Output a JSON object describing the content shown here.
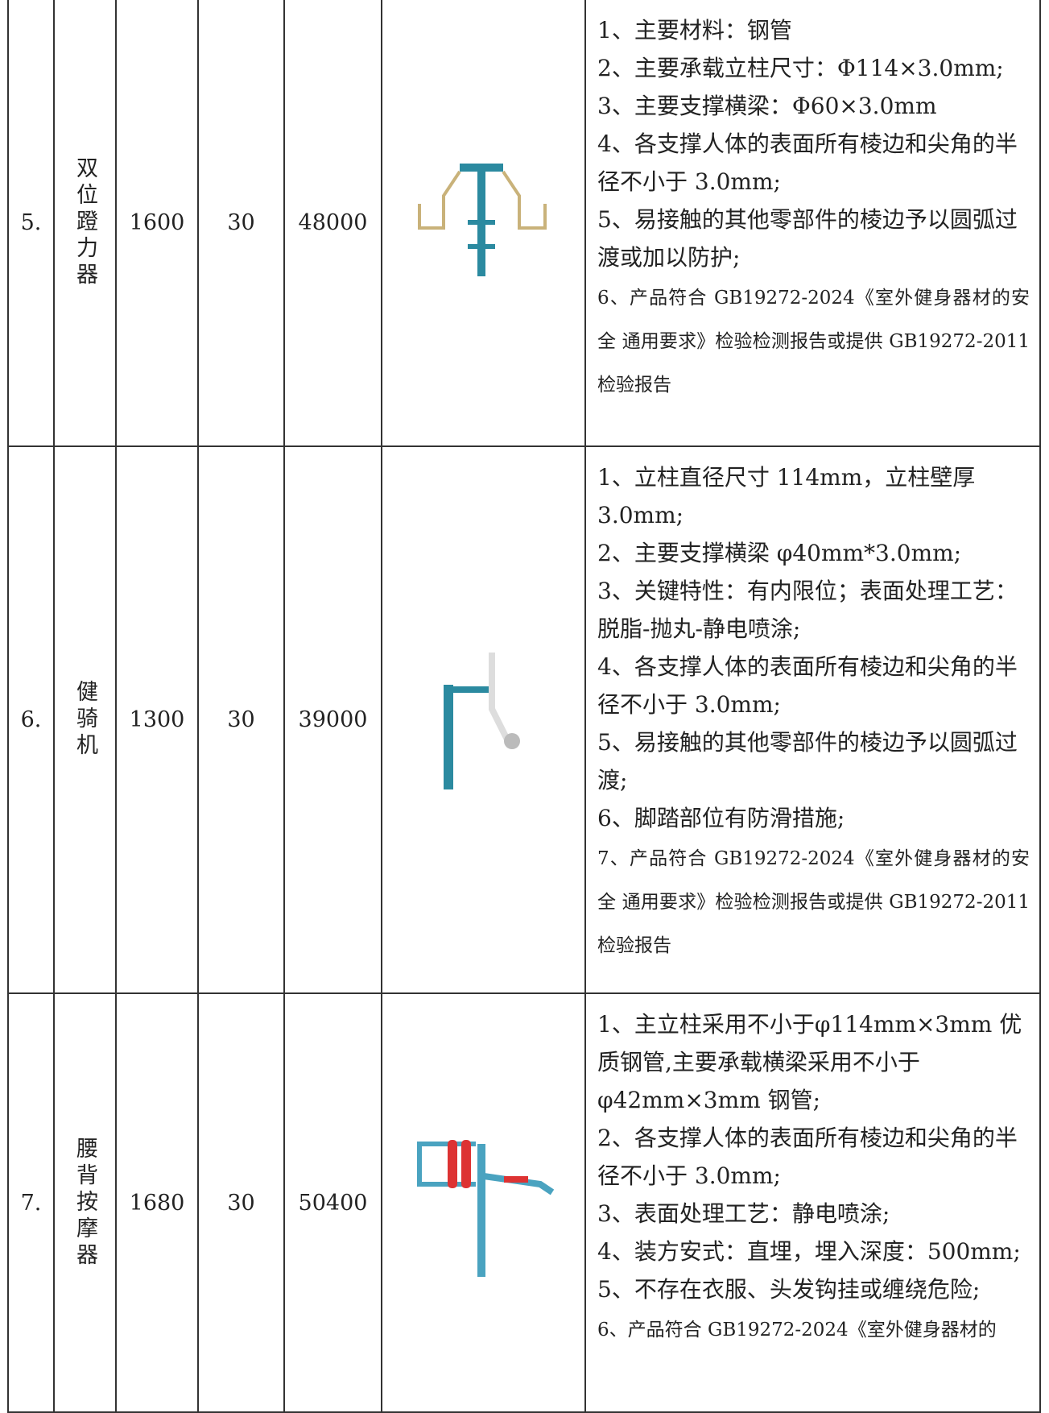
{
  "table": {
    "rows": [
      {
        "no": "5.",
        "name": "双位蹬力器",
        "price": 1600,
        "qty": 30,
        "total": 48000,
        "specs": [
          "1、主要材料：钢管",
          "2、主要承载立柱尺寸：Φ114×3.0mm;",
          "3、主要支撑横梁：Φ60×3.0mm",
          "4、各支撑人体的表面所有棱边和尖角的半径不小于 3.0mm;",
          "5、易接触的其他零部件的棱边予以圆弧过渡或加以防护;",
          "6、产品符合 GB19272-2024《室外健身器材的安全 通用要求》检验检测报告或提供 GB19272-2011 检验报告"
        ]
      },
      {
        "no": "6.",
        "name": "健骑机",
        "price": 1300,
        "qty": 30,
        "total": 39000,
        "specs": [
          "1、立柱直径尺寸 114mm，立柱壁厚 3.0mm;",
          "2、主要支撑横梁 φ40mm*3.0mm;",
          "3、关键特性：有内限位；表面处理工艺：脱脂-抛丸-静电喷涂;",
          "4、各支撑人体的表面所有棱边和尖角的半径不小于 3.0mm;",
          "5、易接触的其他零部件的棱边予以圆弧过渡;",
          "6、脚踏部位有防滑措施;",
          "7、产品符合 GB19272-2024《室外健身器材的安全 通用要求》检验检测报告或提供 GB19272-2011 检验报告"
        ]
      },
      {
        "no": "7.",
        "name": "腰背按摩器",
        "price": 1680,
        "qty": 30,
        "total": 50400,
        "specs": [
          "1、主立柱采用不小于φ114mm×3mm 优质钢管,主要承载横梁采用不小于φ42mm×3mm 钢管;",
          "2、各支撑人体的表面所有棱边和尖角的半径不小于 3.0mm;",
          "3、表面处理工艺：静电喷涂;",
          "4、装方安式：直埋，埋入深度：500mm;",
          "5、不存在衣服、头发钩挂或缠绕危险;",
          "6、产品符合 GB19272-2024《室外健身器材的"
        ]
      }
    ]
  }
}
